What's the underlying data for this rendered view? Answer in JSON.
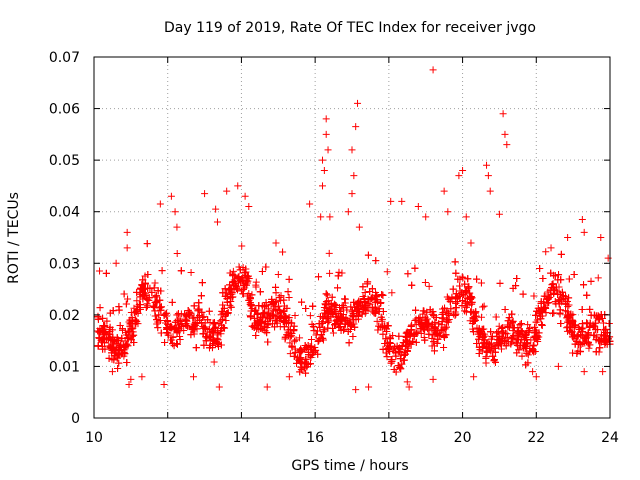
{
  "chart_data": {
    "type": "scatter",
    "title": "Day 119 of 2019, Rate Of TEC Index for receiver jvgo",
    "xlabel": "GPS time / hours",
    "ylabel": "ROTI / TECUs",
    "xlim": [
      10,
      24
    ],
    "ylim": [
      0,
      0.07
    ],
    "x_ticks": [
      "10",
      "12",
      "14",
      "16",
      "18",
      "20",
      "22",
      "24"
    ],
    "y_ticks": [
      "0",
      "0.01",
      "0.02",
      "0.03",
      "0.04",
      "0.05",
      "0.06",
      "0.07"
    ],
    "x_tick_values": [
      10,
      12,
      14,
      16,
      18,
      20,
      22,
      24
    ],
    "y_tick_values": [
      0,
      0.01,
      0.02,
      0.03,
      0.04,
      0.05,
      0.06,
      0.07
    ],
    "grid": true,
    "marker": "+",
    "series": [
      {
        "name": "ROTI",
        "color": "#ff0000",
        "background": {
          "x_range": [
            10.1,
            24.0
          ],
          "count": 3800,
          "y_center": 0.018,
          "y_spread_low": 0.008,
          "y_spread_high": 0.032
        },
        "points": [
          {
            "x": 10.15,
            "y": 0.0285
          },
          {
            "x": 10.6,
            "y": 0.03
          },
          {
            "x": 10.9,
            "y": 0.036
          },
          {
            "x": 10.9,
            "y": 0.033
          },
          {
            "x": 10.95,
            "y": 0.0065
          },
          {
            "x": 11.0,
            "y": 0.0075
          },
          {
            "x": 11.8,
            "y": 0.0415
          },
          {
            "x": 12.1,
            "y": 0.043
          },
          {
            "x": 12.2,
            "y": 0.04
          },
          {
            "x": 12.25,
            "y": 0.037
          },
          {
            "x": 11.9,
            "y": 0.0065
          },
          {
            "x": 13.0,
            "y": 0.0435
          },
          {
            "x": 13.3,
            "y": 0.0405
          },
          {
            "x": 13.35,
            "y": 0.038
          },
          {
            "x": 13.4,
            "y": 0.006
          },
          {
            "x": 13.6,
            "y": 0.044
          },
          {
            "x": 13.9,
            "y": 0.045
          },
          {
            "x": 14.1,
            "y": 0.043
          },
          {
            "x": 14.2,
            "y": 0.041
          },
          {
            "x": 14.7,
            "y": 0.006
          },
          {
            "x": 15.85,
            "y": 0.0415
          },
          {
            "x": 16.2,
            "y": 0.05
          },
          {
            "x": 16.25,
            "y": 0.048
          },
          {
            "x": 16.3,
            "y": 0.058
          },
          {
            "x": 16.3,
            "y": 0.055
          },
          {
            "x": 16.35,
            "y": 0.052
          },
          {
            "x": 16.2,
            "y": 0.045
          },
          {
            "x": 16.15,
            "y": 0.039
          },
          {
            "x": 16.4,
            "y": 0.039
          },
          {
            "x": 17.0,
            "y": 0.052
          },
          {
            "x": 17.05,
            "y": 0.047
          },
          {
            "x": 17.1,
            "y": 0.0565
          },
          {
            "x": 17.15,
            "y": 0.061
          },
          {
            "x": 17.0,
            "y": 0.0435
          },
          {
            "x": 17.2,
            "y": 0.037
          },
          {
            "x": 17.1,
            "y": 0.0055
          },
          {
            "x": 16.9,
            "y": 0.04
          },
          {
            "x": 17.45,
            "y": 0.006
          },
          {
            "x": 18.05,
            "y": 0.042
          },
          {
            "x": 18.35,
            "y": 0.042
          },
          {
            "x": 18.5,
            "y": 0.007
          },
          {
            "x": 18.55,
            "y": 0.006
          },
          {
            "x": 18.8,
            "y": 0.041
          },
          {
            "x": 19.0,
            "y": 0.039
          },
          {
            "x": 19.2,
            "y": 0.0675
          },
          {
            "x": 19.5,
            "y": 0.044
          },
          {
            "x": 19.6,
            "y": 0.04
          },
          {
            "x": 19.9,
            "y": 0.047
          },
          {
            "x": 20.0,
            "y": 0.048
          },
          {
            "x": 20.1,
            "y": 0.039
          },
          {
            "x": 20.65,
            "y": 0.049
          },
          {
            "x": 20.7,
            "y": 0.047
          },
          {
            "x": 20.75,
            "y": 0.044
          },
          {
            "x": 21.1,
            "y": 0.059
          },
          {
            "x": 21.15,
            "y": 0.055
          },
          {
            "x": 21.2,
            "y": 0.053
          },
          {
            "x": 21.0,
            "y": 0.0395
          },
          {
            "x": 21.9,
            "y": 0.009
          },
          {
            "x": 22.0,
            "y": 0.008
          },
          {
            "x": 22.4,
            "y": 0.033
          },
          {
            "x": 22.85,
            "y": 0.035
          },
          {
            "x": 23.25,
            "y": 0.0385
          },
          {
            "x": 23.3,
            "y": 0.036
          },
          {
            "x": 23.75,
            "y": 0.035
          },
          {
            "x": 23.8,
            "y": 0.009
          },
          {
            "x": 23.95,
            "y": 0.031
          },
          {
            "x": 10.5,
            "y": 0.009
          },
          {
            "x": 11.3,
            "y": 0.008
          },
          {
            "x": 12.7,
            "y": 0.008
          },
          {
            "x": 15.3,
            "y": 0.008
          },
          {
            "x": 19.2,
            "y": 0.0075
          },
          {
            "x": 20.3,
            "y": 0.008
          },
          {
            "x": 22.6,
            "y": 0.01
          },
          {
            "x": 23.3,
            "y": 0.009
          }
        ]
      }
    ]
  }
}
